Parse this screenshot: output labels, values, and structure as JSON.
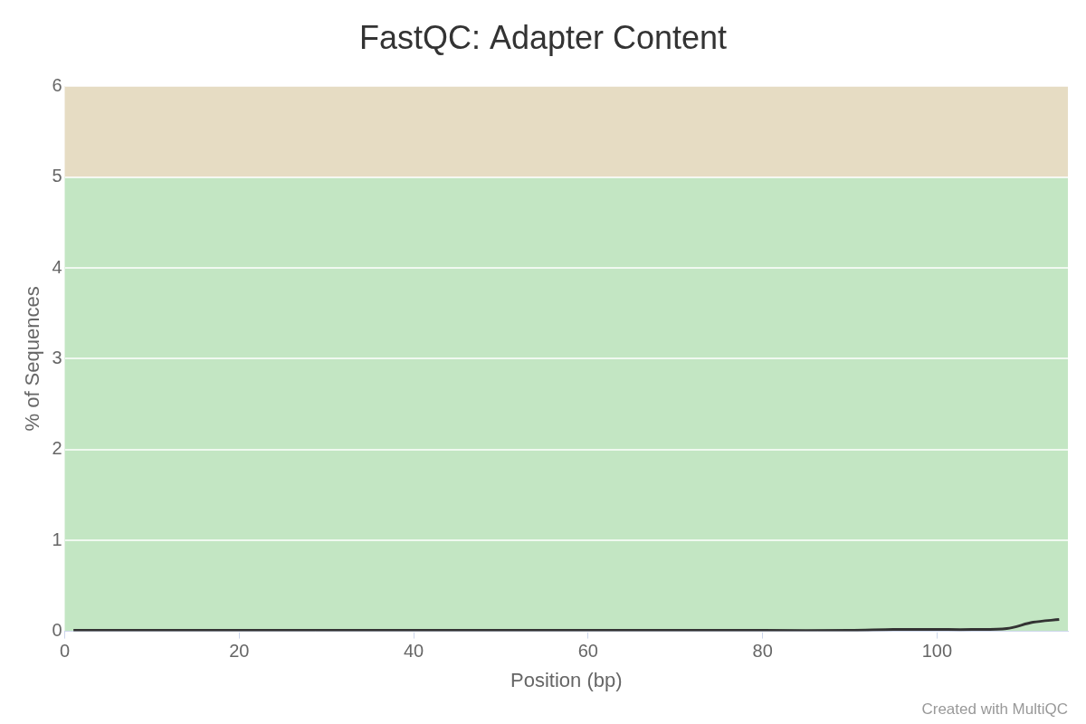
{
  "chart_data": {
    "type": "line",
    "title": "FastQC: Adapter Content",
    "x_label": "Position (bp)",
    "y_label": "% of Sequences",
    "credit": "Created with MultiQC",
    "x": [
      1,
      10,
      20,
      30,
      40,
      50,
      60,
      70,
      80,
      90,
      95,
      100,
      104,
      108,
      111,
      114
    ],
    "values": [
      0.01,
      0.01,
      0.01,
      0.01,
      0.01,
      0.01,
      0.01,
      0.01,
      0.01,
      0.01,
      0.02,
      0.02,
      0.02,
      0.03,
      0.1,
      0.13
    ],
    "color": "#333333",
    "xlim": [
      0,
      115
    ],
    "xticks": [
      0,
      20,
      40,
      60,
      80,
      100
    ],
    "ylim": [
      0,
      6
    ],
    "yticks": [
      0,
      1,
      2,
      3,
      4,
      5,
      6
    ],
    "bands": [
      {
        "from": 0,
        "to": 5,
        "color": "#c3e6c3"
      },
      {
        "from": 5,
        "to": 6,
        "color": "#e6dcc3"
      }
    ],
    "grid": true
  }
}
